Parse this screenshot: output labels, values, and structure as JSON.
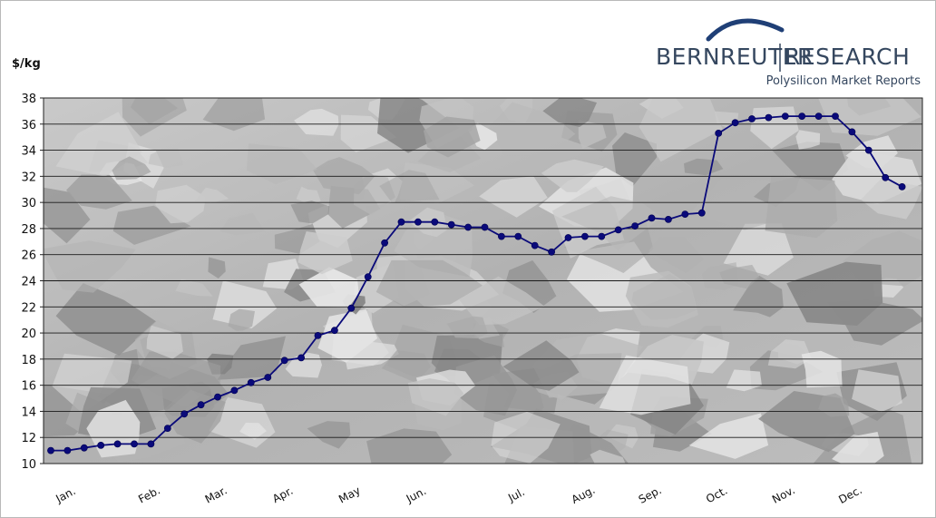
{
  "logo": {
    "brand_left": "BERNREUTER",
    "brand_right": "RESEARCH",
    "tagline": "Polysilicon Market Reports",
    "color": "#35475f"
  },
  "chart_data": {
    "type": "line",
    "title": "",
    "ylabel": "$/kg",
    "xlabel": "",
    "ylim": [
      10,
      38
    ],
    "ytick_step": 2,
    "yticks": [
      "10",
      "12",
      "14",
      "16",
      "18",
      "20",
      "22",
      "24",
      "26",
      "28",
      "30",
      "32",
      "34",
      "36",
      "38"
    ],
    "grid": true,
    "background": "photo of silicon chunks (grayscale)",
    "months": [
      "Jan.",
      "Feb.",
      "Mar.",
      "Apr.",
      "May",
      "Jun.",
      "Jul.",
      "Aug.",
      "Sep.",
      "Oct.",
      "Nov.",
      "Dec."
    ],
    "month_positions": [
      1,
      6,
      10,
      14,
      18,
      22,
      28,
      32,
      36,
      40,
      44,
      48
    ],
    "x_range": [
      0,
      52
    ],
    "line_color": "#0a0a7a",
    "marker": "circle",
    "series": [
      {
        "x": [
          0,
          1,
          2,
          3,
          4,
          5,
          6,
          7,
          8,
          9,
          10,
          11,
          12,
          13,
          14,
          15,
          16,
          17,
          18,
          19,
          20,
          21,
          22,
          23,
          24,
          25,
          26,
          27,
          28,
          29,
          30,
          31,
          32,
          33,
          34,
          35,
          36,
          37,
          38,
          39,
          40,
          41,
          42,
          43,
          44,
          45,
          46,
          47,
          48,
          49,
          50,
          51
        ],
        "values": [
          11.0,
          11.0,
          11.2,
          11.4,
          11.5,
          11.5,
          11.5,
          12.7,
          13.8,
          14.5,
          15.1,
          15.6,
          16.2,
          16.6,
          17.9,
          18.1,
          19.8,
          20.2,
          21.9,
          24.3,
          26.9,
          28.5,
          28.5,
          28.5,
          28.3,
          28.1,
          28.1,
          27.4,
          27.4,
          26.7,
          26.2,
          27.3,
          27.4,
          27.4,
          27.9,
          28.2,
          28.8,
          28.7,
          29.1,
          29.2,
          35.3,
          36.1,
          36.4,
          36.5,
          36.6,
          36.6,
          36.6,
          36.6,
          35.4,
          34.0,
          31.9,
          31.2
        ]
      }
    ]
  }
}
